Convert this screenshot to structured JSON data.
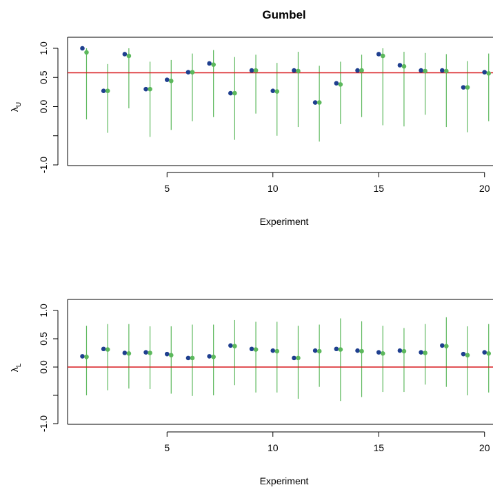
{
  "chart_data": [
    {
      "type": "scatter",
      "title": "Gumbel",
      "xlabel": "Experiment",
      "ylabel_main": "λ",
      "ylabel_sub": "U",
      "xlim": [
        0.3,
        20.4
      ],
      "ylim": [
        -1.0,
        1.0
      ],
      "xticks": [
        5,
        10,
        15,
        20
      ],
      "xtick_labels": [
        "5",
        "10",
        "15",
        "20"
      ],
      "yticks": [
        -1.0,
        0.5,
        0.0,
        0.5,
        1.0
      ],
      "ytick_labels": [
        "-1.0",
        "",
        "0.0",
        "0.5",
        "1.0"
      ],
      "reference_line": 0.58,
      "reference_color": "#d7191c",
      "series": [
        {
          "color": "#1f3f8f",
          "x": [
            1,
            2,
            3,
            4,
            5,
            6,
            7,
            8,
            9,
            10,
            11,
            12,
            13,
            14,
            15,
            16,
            17,
            18,
            19,
            20
          ],
          "y": [
            1.0,
            0.27,
            0.9,
            0.3,
            0.46,
            0.59,
            0.74,
            0.23,
            0.62,
            0.27,
            0.62,
            0.07,
            0.4,
            0.62,
            0.9,
            0.71,
            0.62,
            0.62,
            0.33,
            0.59
          ]
        },
        {
          "color": "#5cb85c",
          "x": [
            1,
            2,
            3,
            4,
            5,
            6,
            7,
            8,
            9,
            10,
            11,
            12,
            13,
            14,
            15,
            16,
            17,
            18,
            19,
            20
          ],
          "y": [
            0.93,
            0.27,
            0.87,
            0.3,
            0.44,
            0.59,
            0.72,
            0.23,
            0.62,
            0.26,
            0.61,
            0.07,
            0.38,
            0.62,
            0.87,
            0.69,
            0.61,
            0.61,
            0.33,
            0.57
          ],
          "lower": [
            -0.22,
            -0.45,
            -0.03,
            -0.52,
            -0.4,
            -0.25,
            -0.18,
            -0.57,
            -0.12,
            -0.5,
            -0.35,
            -0.6,
            -0.3,
            -0.18,
            -0.32,
            -0.34,
            -0.14,
            -0.35,
            -0.44,
            -0.25
          ],
          "upper": [
            1.0,
            0.73,
            1.0,
            0.77,
            0.8,
            0.91,
            0.97,
            0.85,
            0.89,
            0.75,
            0.94,
            0.7,
            0.77,
            0.89,
            1.0,
            0.94,
            0.92,
            0.9,
            0.78,
            0.91
          ]
        }
      ]
    },
    {
      "type": "scatter",
      "title": "",
      "xlabel": "Experiment",
      "ylabel_main": "λ",
      "ylabel_sub": "L",
      "xlim": [
        0.3,
        20.4
      ],
      "ylim": [
        -1.0,
        1.0
      ],
      "xticks": [
        5,
        10,
        15,
        20
      ],
      "xtick_labels": [
        "5",
        "10",
        "15",
        "20"
      ],
      "yticks": [
        -1.0,
        0.5,
        0.0,
        0.5,
        1.0
      ],
      "ytick_labels": [
        "-1.0",
        "",
        "0.0",
        "0.5",
        "1.0"
      ],
      "reference_line": 0.0,
      "reference_color": "#d7191c",
      "series": [
        {
          "color": "#1f3f8f",
          "x": [
            1,
            2,
            3,
            4,
            5,
            6,
            7,
            8,
            9,
            10,
            11,
            12,
            13,
            14,
            15,
            16,
            17,
            18,
            19,
            20
          ],
          "y": [
            0.19,
            0.32,
            0.25,
            0.26,
            0.23,
            0.16,
            0.19,
            0.38,
            0.32,
            0.29,
            0.16,
            0.29,
            0.32,
            0.29,
            0.26,
            0.29,
            0.26,
            0.38,
            0.23,
            0.26
          ]
        },
        {
          "color": "#5cb85c",
          "x": [
            1,
            2,
            3,
            4,
            5,
            6,
            7,
            8,
            9,
            10,
            11,
            12,
            13,
            14,
            15,
            16,
            17,
            18,
            19,
            20
          ],
          "y": [
            0.18,
            0.31,
            0.24,
            0.25,
            0.21,
            0.16,
            0.18,
            0.37,
            0.31,
            0.28,
            0.16,
            0.28,
            0.31,
            0.28,
            0.24,
            0.28,
            0.25,
            0.37,
            0.21,
            0.24
          ],
          "lower": [
            -0.5,
            -0.41,
            -0.38,
            -0.39,
            -0.47,
            -0.51,
            -0.5,
            -0.32,
            -0.45,
            -0.45,
            -0.56,
            -0.35,
            -0.6,
            -0.53,
            -0.44,
            -0.44,
            -0.31,
            -0.35,
            -0.5,
            -0.45
          ],
          "upper": [
            0.73,
            0.76,
            0.76,
            0.72,
            0.72,
            0.75,
            0.75,
            0.83,
            0.8,
            0.8,
            0.73,
            0.75,
            0.86,
            0.81,
            0.73,
            0.69,
            0.76,
            0.88,
            0.72,
            0.76
          ]
        }
      ]
    }
  ]
}
